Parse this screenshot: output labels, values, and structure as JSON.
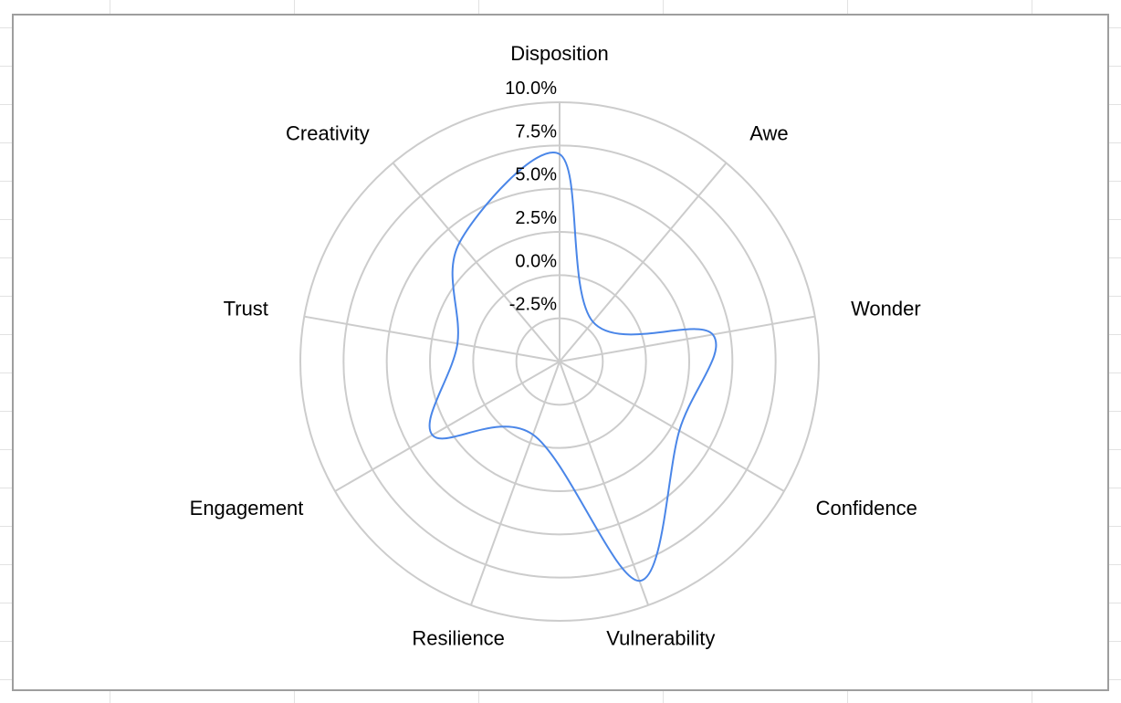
{
  "chart_data": {
    "type": "radar",
    "axes": [
      "Disposition",
      "Awe",
      "Wonder",
      "Confidence",
      "Vulnerability",
      "Resilience",
      "Engagement",
      "Trust",
      "Creativity"
    ],
    "series": [
      {
        "values": [
          7.0,
          -2.0,
          4.0,
          3.0,
          8.5,
          -0.5,
          3.5,
          1.0,
          4.0
        ]
      }
    ],
    "r_ticks": [
      "-2.5%",
      "0.0%",
      "2.5%",
      "5.0%",
      "7.5%",
      "10.0%"
    ],
    "r_range": [
      -5,
      10
    ],
    "grid": true,
    "colors": {
      "series": "#4a86e8",
      "grid": "#cccccc",
      "frame": "#9e9e9e",
      "sheet_grid": "#e2e2e2"
    }
  }
}
